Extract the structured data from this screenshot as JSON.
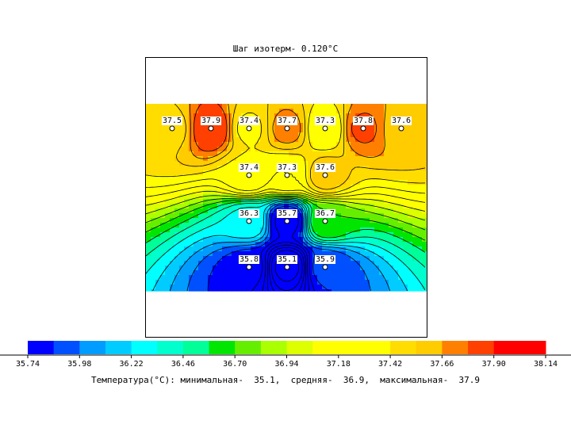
{
  "title": "Шаг изотерм- 0.120°C",
  "footer": {
    "text": "Температура(°С): минимальная-  35.1,  средняя-  36.9,  максимальная-  37.9"
  },
  "chart_data": {
    "type": "heatmap",
    "isotherm_step": 0.12,
    "unit": "°C",
    "sensors": [
      {
        "row": 0,
        "col": 0,
        "value": 37.5
      },
      {
        "row": 0,
        "col": 1,
        "value": 37.9
      },
      {
        "row": 0,
        "col": 2,
        "value": 37.4
      },
      {
        "row": 0,
        "col": 3,
        "value": 37.7
      },
      {
        "row": 0,
        "col": 4,
        "value": 37.3
      },
      {
        "row": 0,
        "col": 5,
        "value": 37.8
      },
      {
        "row": 0,
        "col": 6,
        "value": 37.6
      },
      {
        "row": 1,
        "col": 2,
        "value": 37.4
      },
      {
        "row": 1,
        "col": 3,
        "value": 37.3
      },
      {
        "row": 1,
        "col": 4,
        "value": 37.6
      },
      {
        "row": 2,
        "col": 2,
        "value": 36.3
      },
      {
        "row": 2,
        "col": 3,
        "value": 35.7
      },
      {
        "row": 2,
        "col": 4,
        "value": 36.7
      },
      {
        "row": 3,
        "col": 2,
        "value": 35.8
      },
      {
        "row": 3,
        "col": 3,
        "value": 35.1
      },
      {
        "row": 3,
        "col": 4,
        "value": 35.9
      }
    ],
    "colorbar": {
      "min": 35.74,
      "max": 38.14,
      "tick_labels": [
        "35.74",
        "35.98",
        "36.22",
        "36.46",
        "36.70",
        "36.94",
        "37.18",
        "37.42",
        "37.66",
        "37.90",
        "38.14"
      ],
      "colors": [
        "#0000ff",
        "#0050ff",
        "#009cff",
        "#00ccff",
        "#00ffff",
        "#00ffcc",
        "#00ff99",
        "#00e600",
        "#66ee00",
        "#aaff00",
        "#ddff00",
        "#ffff00",
        "#ffff00",
        "#ffff00",
        "#ffdd00",
        "#ffcc00",
        "#ff8000",
        "#ff4000",
        "#ff0000",
        "#ff0000"
      ]
    },
    "stats": {
      "min": 35.1,
      "mean": 36.9,
      "max": 37.9
    }
  }
}
